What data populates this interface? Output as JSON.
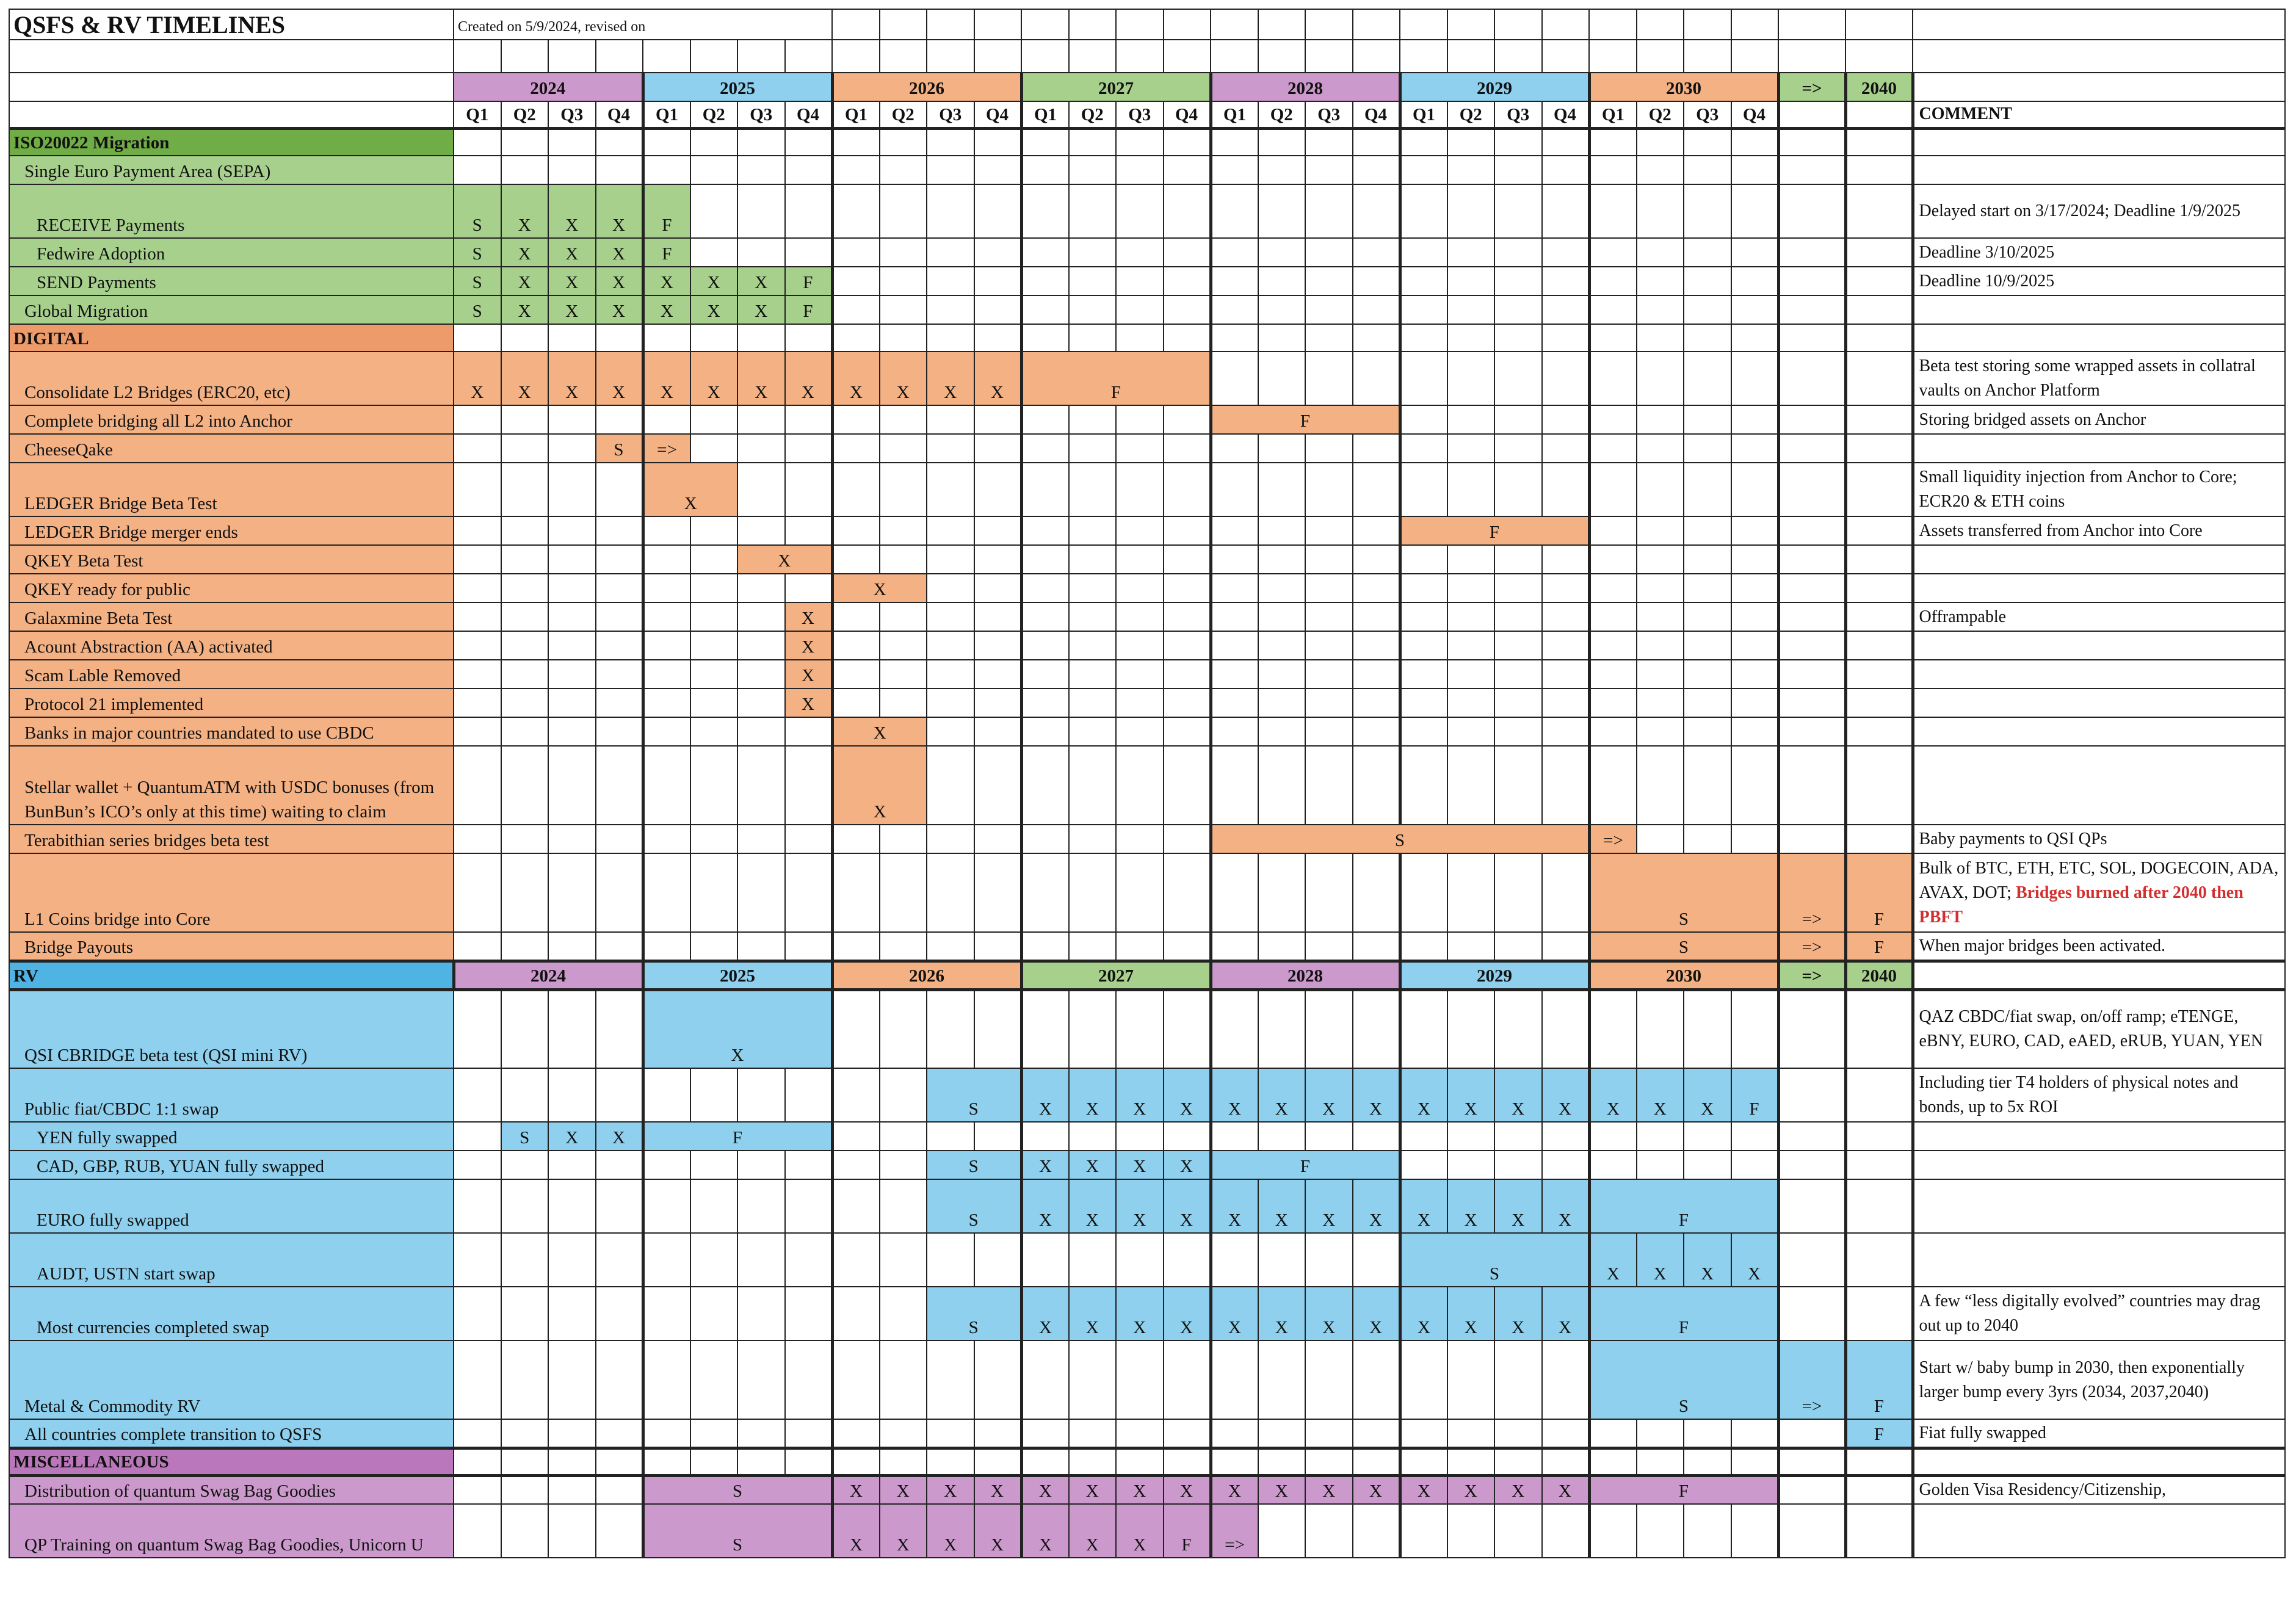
{
  "title": "QSFS & RV TIMELINES",
  "created": "Created on 5/9/2024, revised on",
  "comment_header": "COMMENT",
  "quarters": [
    "Q1",
    "Q2",
    "Q3",
    "Q4"
  ],
  "years": [
    {
      "label": "2024",
      "color": "#cc99cc"
    },
    {
      "label": "2025",
      "color": "#8ed0ee"
    },
    {
      "label": "2026",
      "color": "#f4b183"
    },
    {
      "label": "2027",
      "color": "#a8d08d"
    },
    {
      "label": "2028",
      "color": "#cc99cc"
    },
    {
      "label": "2029",
      "color": "#8ed0ee"
    },
    {
      "label": "2030",
      "color": "#f4b183"
    }
  ],
  "arrow_label": "=>",
  "arrow_color": "#a8d08d",
  "final_year": {
    "label": "2040",
    "color": "#a8d08d"
  },
  "sections": [
    {
      "name": "ISO20022 Migration",
      "key": "iso",
      "rows": [
        {
          "label": "Single Euro Payment Area (SEPA)",
          "indent": 1,
          "lines": 1,
          "cells": []
        },
        {
          "label": "RECEIVE Payments",
          "indent": 2,
          "lines": 2,
          "cells": [
            [
              0,
              1,
              "S"
            ],
            [
              1,
              1,
              "X"
            ],
            [
              2,
              1,
              "X"
            ],
            [
              3,
              1,
              "X"
            ],
            [
              4,
              1,
              "F"
            ]
          ],
          "comment": "Delayed start on 3/17/2024; Deadline 1/9/2025"
        },
        {
          "label": "Fedwire Adoption",
          "indent": 2,
          "lines": 1,
          "cells": [
            [
              0,
              1,
              "S"
            ],
            [
              1,
              1,
              "X"
            ],
            [
              2,
              1,
              "X"
            ],
            [
              3,
              1,
              "X"
            ],
            [
              4,
              1,
              "F"
            ]
          ],
          "comment": "Deadline 3/10/2025"
        },
        {
          "label": "SEND Payments",
          "indent": 2,
          "lines": 1,
          "cells": [
            [
              0,
              1,
              "S"
            ],
            [
              1,
              1,
              "X"
            ],
            [
              2,
              1,
              "X"
            ],
            [
              3,
              1,
              "X"
            ],
            [
              4,
              1,
              "X"
            ],
            [
              5,
              1,
              "X"
            ],
            [
              6,
              1,
              "X"
            ],
            [
              7,
              1,
              "F"
            ]
          ],
          "comment": "Deadline 10/9/2025"
        },
        {
          "label": "Global Migration",
          "indent": 1,
          "lines": 1,
          "cells": [
            [
              0,
              1,
              "S"
            ],
            [
              1,
              1,
              "X"
            ],
            [
              2,
              1,
              "X"
            ],
            [
              3,
              1,
              "X"
            ],
            [
              4,
              1,
              "X"
            ],
            [
              5,
              1,
              "X"
            ],
            [
              6,
              1,
              "X"
            ],
            [
              7,
              1,
              "F"
            ]
          ]
        }
      ]
    },
    {
      "name": "DIGITAL",
      "key": "digital",
      "rows": [
        {
          "label": "Consolidate L2 Bridges (ERC20, etc)",
          "indent": 1,
          "lines": 2,
          "cells": [
            [
              0,
              1,
              "X"
            ],
            [
              1,
              1,
              "X"
            ],
            [
              2,
              1,
              "X"
            ],
            [
              3,
              1,
              "X"
            ],
            [
              4,
              1,
              "X"
            ],
            [
              5,
              1,
              "X"
            ],
            [
              6,
              1,
              "X"
            ],
            [
              7,
              1,
              "X"
            ],
            [
              8,
              1,
              "X"
            ],
            [
              9,
              1,
              "X"
            ],
            [
              10,
              1,
              "X"
            ],
            [
              11,
              1,
              "X"
            ],
            [
              12,
              4,
              "F"
            ]
          ],
          "comment": "Beta test storing some wrapped assets in collatral vaults on Anchor Platform"
        },
        {
          "label": "Complete bridging all L2 into Anchor",
          "indent": 1,
          "lines": 1,
          "cells": [
            [
              16,
              4,
              "F"
            ]
          ],
          "comment": "Storing bridged assets on Anchor"
        },
        {
          "label": "CheeseQake",
          "indent": 1,
          "lines": 1,
          "cells": [
            [
              3,
              1,
              "S"
            ],
            [
              4,
              1,
              "=>"
            ]
          ]
        },
        {
          "label": "LEDGER Bridge Beta Test",
          "indent": 1,
          "lines": 2,
          "cells": [
            [
              4,
              2,
              "X"
            ]
          ],
          "comment": "Small liquidity injection from Anchor to Core; ECR20 & ETH coins"
        },
        {
          "label": "LEDGER Bridge merger ends",
          "indent": 1,
          "lines": 1,
          "cells": [
            [
              20,
              4,
              "F"
            ]
          ],
          "comment": "Assets transferred from Anchor into Core"
        },
        {
          "label": "QKEY Beta Test",
          "indent": 1,
          "lines": 1,
          "cells": [
            [
              6,
              2,
              "X"
            ]
          ]
        },
        {
          "label": "QKEY ready for public",
          "indent": 1,
          "lines": 1,
          "cells": [
            [
              8,
              2,
              "X"
            ]
          ]
        },
        {
          "label": "Galaxmine Beta Test",
          "indent": 1,
          "lines": 1,
          "cells": [
            [
              7,
              1,
              "X"
            ]
          ],
          "comment": "Offrampable"
        },
        {
          "label": "Acount Abstraction (AA) activated",
          "indent": 1,
          "lines": 1,
          "cells": [
            [
              7,
              1,
              "X"
            ]
          ]
        },
        {
          "label": "Scam Lable Removed",
          "indent": 1,
          "lines": 1,
          "cells": [
            [
              7,
              1,
              "X"
            ]
          ]
        },
        {
          "label": "Protocol 21 implemented",
          "indent": 1,
          "lines": 1,
          "cells": [
            [
              7,
              1,
              "X"
            ]
          ]
        },
        {
          "label": "Banks in major countries mandated to use CBDC",
          "indent": 1,
          "lines": 1,
          "cells": [
            [
              8,
              2,
              "X"
            ]
          ]
        },
        {
          "label": "Stellar wallet + QuantumATM with USDC bonuses (from BunBun’s ICO’s only at this time) waiting to claim",
          "indent": 1,
          "lines": 3,
          "cells": [
            [
              8,
              2,
              "X"
            ]
          ]
        },
        {
          "label": "Terabithian series bridges beta test",
          "indent": 1,
          "lines": 1,
          "cells": [
            [
              16,
              8,
              "S"
            ],
            [
              24,
              1,
              "=>"
            ]
          ],
          "comment": "Baby payments to QSI QPs"
        },
        {
          "label": "L1 Coins bridge into Core",
          "indent": 1,
          "lines": 3,
          "cells": [
            [
              24,
              4,
              "S"
            ],
            [
              28,
              1,
              "=>"
            ],
            [
              29,
              1,
              "F"
            ]
          ],
          "comment": "Bulk of BTC, ETH, ETC, SOL, DOGECOIN, ADA, AVAX, DOT;",
          "comment_red": "Bridges burned after 2040 then PBFT"
        },
        {
          "label": "Bridge Payouts",
          "indent": 1,
          "lines": 1,
          "cells": [
            [
              24,
              4,
              "S"
            ],
            [
              28,
              1,
              "=>"
            ],
            [
              29,
              1,
              "F"
            ]
          ],
          "comment": "When major bridges been activated."
        }
      ]
    },
    {
      "name": "RV",
      "key": "rv",
      "rows": [
        {
          "label": "QSI CBRIDGE beta test (QSI mini RV)",
          "indent": 1,
          "lines": 3,
          "cells": [
            [
              4,
              4,
              "X"
            ]
          ],
          "comment": "QAZ CBDC/fiat swap, on/off ramp; eTENGE, eBNY, EURO, CAD, eAED, eRUB, YUAN, YEN"
        },
        {
          "label": "Public fiat/CBDC 1:1 swap",
          "indent": 1,
          "lines": 2,
          "cells": [
            [
              10,
              2,
              "S"
            ],
            [
              12,
              1,
              "X"
            ],
            [
              13,
              1,
              "X"
            ],
            [
              14,
              1,
              "X"
            ],
            [
              15,
              1,
              "X"
            ],
            [
              16,
              1,
              "X"
            ],
            [
              17,
              1,
              "X"
            ],
            [
              18,
              1,
              "X"
            ],
            [
              19,
              1,
              "X"
            ],
            [
              20,
              1,
              "X"
            ],
            [
              21,
              1,
              "X"
            ],
            [
              22,
              1,
              "X"
            ],
            [
              23,
              1,
              "X"
            ],
            [
              24,
              1,
              "X"
            ],
            [
              25,
              1,
              "X"
            ],
            [
              26,
              1,
              "X"
            ],
            [
              27,
              1,
              "F"
            ]
          ],
          "comment": "Including tier T4 holders of physical notes and bonds, up to 5x ROI"
        },
        {
          "label": "YEN fully swapped",
          "indent": 2,
          "lines": 1,
          "cells": [
            [
              1,
              1,
              "S"
            ],
            [
              2,
              1,
              "X"
            ],
            [
              3,
              1,
              "X"
            ],
            [
              4,
              4,
              "F"
            ]
          ]
        },
        {
          "label": "CAD, GBP, RUB, YUAN fully swapped",
          "indent": 2,
          "lines": 1,
          "cells": [
            [
              10,
              2,
              "S"
            ],
            [
              12,
              1,
              "X"
            ],
            [
              13,
              1,
              "X"
            ],
            [
              14,
              1,
              "X"
            ],
            [
              15,
              1,
              "X"
            ],
            [
              16,
              4,
              "F"
            ]
          ]
        },
        {
          "label": "EURO fully swapped",
          "indent": 2,
          "lines": 2,
          "cells": [
            [
              10,
              2,
              "S"
            ],
            [
              12,
              1,
              "X"
            ],
            [
              13,
              1,
              "X"
            ],
            [
              14,
              1,
              "X"
            ],
            [
              15,
              1,
              "X"
            ],
            [
              16,
              1,
              "X"
            ],
            [
              17,
              1,
              "X"
            ],
            [
              18,
              1,
              "X"
            ],
            [
              19,
              1,
              "X"
            ],
            [
              20,
              1,
              "X"
            ],
            [
              21,
              1,
              "X"
            ],
            [
              22,
              1,
              "X"
            ],
            [
              23,
              1,
              "X"
            ],
            [
              24,
              4,
              "F"
            ]
          ]
        },
        {
          "label": "AUDT, USTN start swap",
          "indent": 2,
          "lines": 2,
          "cells": [
            [
              20,
              4,
              "S"
            ],
            [
              24,
              1,
              "X"
            ],
            [
              25,
              1,
              "X"
            ],
            [
              26,
              1,
              "X"
            ],
            [
              27,
              1,
              "X"
            ]
          ]
        },
        {
          "label": "Most currencies completed swap",
          "indent": 2,
          "lines": 2,
          "cells": [
            [
              10,
              2,
              "S"
            ],
            [
              12,
              1,
              "X"
            ],
            [
              13,
              1,
              "X"
            ],
            [
              14,
              1,
              "X"
            ],
            [
              15,
              1,
              "X"
            ],
            [
              16,
              1,
              "X"
            ],
            [
              17,
              1,
              "X"
            ],
            [
              18,
              1,
              "X"
            ],
            [
              19,
              1,
              "X"
            ],
            [
              20,
              1,
              "X"
            ],
            [
              21,
              1,
              "X"
            ],
            [
              22,
              1,
              "X"
            ],
            [
              23,
              1,
              "X"
            ],
            [
              24,
              4,
              "F"
            ]
          ],
          "comment": "A few “less digitally evolved” countries may drag out up to 2040"
        },
        {
          "label": "Metal & Commodity RV",
          "indent": 1,
          "lines": 3,
          "cells": [
            [
              24,
              4,
              "S"
            ],
            [
              28,
              1,
              "=>"
            ],
            [
              29,
              1,
              "F"
            ]
          ],
          "comment": "Start w/ baby bump in 2030, then exponentially larger bump every 3yrs (2034, 2037,2040)"
        },
        {
          "label": "All countries complete transition to QSFS",
          "indent": 1,
          "lines": 1,
          "cells": [
            [
              29,
              1,
              "F"
            ]
          ],
          "comment": "Fiat fully swapped"
        }
      ]
    },
    {
      "name": "MISCELLANEOUS",
      "key": "misc",
      "rows": [
        {
          "label": "Distribution of quantum Swag Bag Goodies",
          "indent": 1,
          "lines": 1,
          "cells": [
            [
              4,
              4,
              "S"
            ],
            [
              8,
              1,
              "X"
            ],
            [
              9,
              1,
              "X"
            ],
            [
              10,
              1,
              "X"
            ],
            [
              11,
              1,
              "X"
            ],
            [
              12,
              1,
              "X"
            ],
            [
              13,
              1,
              "X"
            ],
            [
              14,
              1,
              "X"
            ],
            [
              15,
              1,
              "X"
            ],
            [
              16,
              1,
              "X"
            ],
            [
              17,
              1,
              "X"
            ],
            [
              18,
              1,
              "X"
            ],
            [
              19,
              1,
              "X"
            ],
            [
              20,
              1,
              "X"
            ],
            [
              21,
              1,
              "X"
            ],
            [
              22,
              1,
              "X"
            ],
            [
              23,
              1,
              "X"
            ],
            [
              24,
              4,
              "F"
            ]
          ],
          "comment": "Golden Visa Residency/Citizenship,"
        },
        {
          "label": "QP Training on quantum Swag Bag Goodies, Unicorn U",
          "indent": 1,
          "lines": 2,
          "cells": [
            [
              4,
              4,
              "S"
            ],
            [
              8,
              1,
              "X"
            ],
            [
              9,
              1,
              "X"
            ],
            [
              10,
              1,
              "X"
            ],
            [
              11,
              1,
              "X"
            ],
            [
              12,
              1,
              "X"
            ],
            [
              13,
              1,
              "X"
            ],
            [
              14,
              1,
              "X"
            ],
            [
              15,
              1,
              "F"
            ],
            [
              16,
              1,
              "=>"
            ]
          ]
        }
      ]
    }
  ],
  "palette": {
    "iso": {
      "row": "#a8d08d",
      "header": "#70ad47"
    },
    "digital": {
      "row": "#f4b183",
      "header": "#ee9b6b"
    },
    "rv": {
      "row": "#8ed0ee",
      "header": "#4fb3e3"
    },
    "misc": {
      "row": "#cc99cc",
      "header": "#bb77bb"
    }
  }
}
